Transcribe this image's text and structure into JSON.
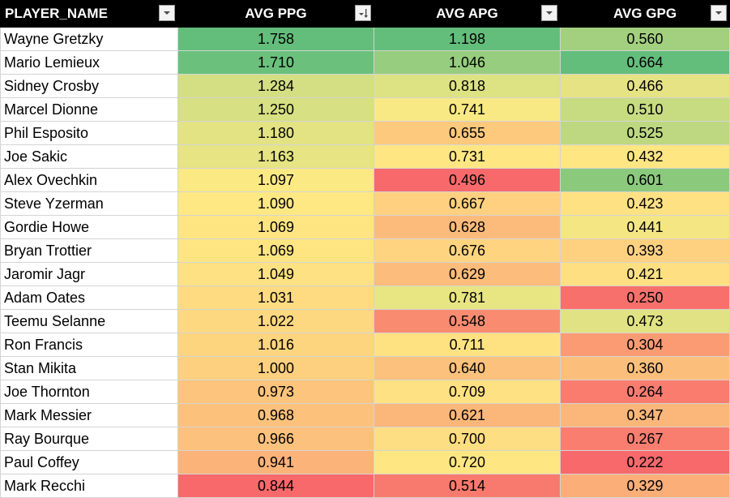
{
  "columns": [
    {
      "label": "PLAYER_NAME",
      "align": "left",
      "filter_icon": "filter-dropdown-icon"
    },
    {
      "label": "AVG PPG",
      "align": "center",
      "filter_icon": "sort-descending-filter-icon"
    },
    {
      "label": "AVG APG",
      "align": "center",
      "filter_icon": "filter-dropdown-icon"
    },
    {
      "label": "AVG GPG",
      "align": "center",
      "filter_icon": "filter-dropdown-icon"
    }
  ],
  "rows": [
    {
      "name": "Wayne Gretzky",
      "ppg": "1.758",
      "apg": "1.198",
      "gpg": "0.560",
      "ppg_color": "#63be7b",
      "apg_color": "#63be7b",
      "gpg_color": "#a2d07e"
    },
    {
      "name": "Mario Lemieux",
      "ppg": "1.710",
      "apg": "1.046",
      "gpg": "0.664",
      "ppg_color": "#6bc17c",
      "apg_color": "#97cd7e",
      "gpg_color": "#63be7b"
    },
    {
      "name": "Sidney Crosby",
      "ppg": "1.284",
      "apg": "0.818",
      "gpg": "0.466",
      "ppg_color": "#d3df82",
      "apg_color": "#dde282",
      "gpg_color": "#e5e383"
    },
    {
      "name": "Marcel Dionne",
      "ppg": "1.250",
      "apg": "0.741",
      "gpg": "0.510",
      "ppg_color": "#d7e082",
      "apg_color": "#f8e984",
      "gpg_color": "#c7db81"
    },
    {
      "name": "Phil Esposito",
      "ppg": "1.180",
      "apg": "0.655",
      "gpg": "0.525",
      "ppg_color": "#e3e383",
      "apg_color": "#fdc97d",
      "gpg_color": "#bdd880"
    },
    {
      "name": "Joe Sakic",
      "ppg": "1.163",
      "apg": "0.731",
      "gpg": "0.432",
      "ppg_color": "#e6e483",
      "apg_color": "#fee683",
      "gpg_color": "#fee683"
    },
    {
      "name": "Alex Ovechkin",
      "ppg": "1.097",
      "apg": "0.496",
      "gpg": "0.601",
      "ppg_color": "#fbe983",
      "apg_color": "#f8696b",
      "gpg_color": "#8bc97d"
    },
    {
      "name": "Steve Yzerman",
      "ppg": "1.090",
      "apg": "0.667",
      "gpg": "0.423",
      "ppg_color": "#fee883",
      "apg_color": "#fed07f",
      "gpg_color": "#fee182"
    },
    {
      "name": "Gordie Howe",
      "ppg": "1.069",
      "apg": "0.628",
      "gpg": "0.441",
      "ppg_color": "#fee582",
      "apg_color": "#fcbb7b",
      "gpg_color": "#f4e683"
    },
    {
      "name": "Bryan Trottier",
      "ppg": "1.069",
      "apg": "0.676",
      "gpg": "0.393",
      "ppg_color": "#fee582",
      "apg_color": "#fed480",
      "gpg_color": "#fdd17f"
    },
    {
      "name": "Jaromir Jagr",
      "ppg": "1.049",
      "apg": "0.629",
      "gpg": "0.421",
      "ppg_color": "#fee182",
      "apg_color": "#fcbc7b",
      "gpg_color": "#fee082"
    },
    {
      "name": "Adam Oates",
      "ppg": "1.031",
      "apg": "0.781",
      "gpg": "0.250",
      "ppg_color": "#fedb81",
      "apg_color": "#e8e583",
      "gpg_color": "#f8706c"
    },
    {
      "name": "Teemu Selanne",
      "ppg": "1.022",
      "apg": "0.548",
      "gpg": "0.473",
      "ppg_color": "#fdd880",
      "apg_color": "#f98b71",
      "gpg_color": "#e1e283"
    },
    {
      "name": "Ron Francis",
      "ppg": "1.016",
      "apg": "0.711",
      "gpg": "0.304",
      "ppg_color": "#fdd57f",
      "apg_color": "#fee282",
      "gpg_color": "#fa9b74"
    },
    {
      "name": "Stan Mikita",
      "ppg": "1.000",
      "apg": "0.640",
      "gpg": "0.360",
      "ppg_color": "#fdd07f",
      "apg_color": "#fcc17c",
      "gpg_color": "#fcbf7b"
    },
    {
      "name": "Joe Thornton",
      "ppg": "0.973",
      "apg": "0.709",
      "gpg": "0.264",
      "ppg_color": "#fcc47c",
      "apg_color": "#fee182",
      "gpg_color": "#f97c6f"
    },
    {
      "name": "Mark Messier",
      "ppg": "0.968",
      "apg": "0.621",
      "gpg": "0.347",
      "ppg_color": "#fcc27c",
      "apg_color": "#fbb77a",
      "gpg_color": "#fbb77a"
    },
    {
      "name": "Ray Bourque",
      "ppg": "0.966",
      "apg": "0.700",
      "gpg": "0.267",
      "ppg_color": "#fcc17c",
      "apg_color": "#fede82",
      "gpg_color": "#f97e6f"
    },
    {
      "name": "Paul Coffey",
      "ppg": "0.941",
      "apg": "0.720",
      "gpg": "0.222",
      "ppg_color": "#fbb379",
      "apg_color": "#fee683",
      "gpg_color": "#f8696b"
    },
    {
      "name": "Mark Recchi",
      "ppg": "0.844",
      "apg": "0.514",
      "gpg": "0.329",
      "ppg_color": "#f8696b",
      "apg_color": "#f87a6e",
      "gpg_color": "#fbae78"
    }
  ]
}
